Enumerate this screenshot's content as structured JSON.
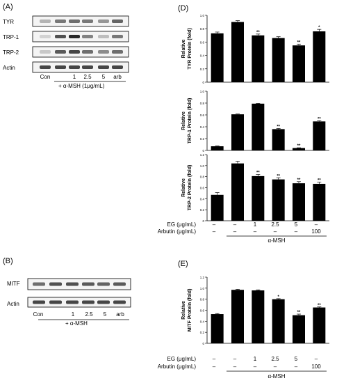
{
  "panels": {
    "A": "(A)",
    "B": "(B)",
    "D": "(D)",
    "E": "(E)"
  },
  "blot_A": {
    "rows": [
      "TYR",
      "TRP-1",
      "TRP-2",
      "Actin"
    ],
    "lanes": [
      "Con",
      "",
      "1",
      "2.5",
      "5",
      "arb"
    ],
    "treatment": "+ α-MSH (1μg/mL)"
  },
  "blot_B": {
    "rows": [
      "MITF",
      "Actin"
    ],
    "lanes": [
      "Con",
      "",
      "1",
      "2.5",
      "5",
      "arb"
    ],
    "treatment": "+ α-MSH"
  },
  "bottom_D": {
    "eg_label": "EG (μg/mL)",
    "arb_label": "Arbutin (μg/mL)",
    "eg": [
      "–",
      "–",
      "1",
      "2.5",
      "5",
      "–"
    ],
    "arb": [
      "–",
      "–",
      "–",
      "–",
      "–",
      "100"
    ],
    "msh": "α-MSH"
  },
  "bottom_E": {
    "eg_label": "EG (μg/mL)",
    "arb_label": "Arbutin (μg/mL)",
    "eg": [
      "–",
      "–",
      "1",
      "2.5",
      "5",
      "–"
    ],
    "arb": [
      "–",
      "–",
      "–",
      "–",
      "–",
      "100"
    ],
    "msh": "α-MSH"
  },
  "chart_data": [
    {
      "type": "bar",
      "ylabel": "Relative TYR Protein (fold)",
      "ylim": [
        0,
        1.0
      ],
      "yticks": [
        "0",
        "0.2",
        "0.4",
        "0.6",
        "0.8",
        "1.0"
      ],
      "values": [
        0.73,
        0.9,
        0.7,
        0.66,
        0.55,
        0.76
      ],
      "errors": [
        0.02,
        0.02,
        0.02,
        0.02,
        0.02,
        0.03
      ],
      "sig": [
        "",
        "",
        "**",
        "",
        "**",
        "*"
      ]
    },
    {
      "type": "bar",
      "ylabel": "Relative TRP-1 Protein (fold)",
      "ylim": [
        0,
        1.0
      ],
      "yticks": [
        "0",
        "0.2",
        "0.4",
        "0.6",
        "0.8",
        "1.0"
      ],
      "values": [
        0.07,
        0.61,
        0.79,
        0.36,
        0.04,
        0.49
      ],
      "errors": [
        0.005,
        0.005,
        0.005,
        0.01,
        0.005,
        0.01
      ],
      "sig": [
        "",
        "",
        "",
        "**",
        "**",
        "**"
      ]
    },
    {
      "type": "bar",
      "ylabel": "Relative TRP-2 Protein (fold)",
      "ylim": [
        0,
        1.2
      ],
      "yticks": [
        "0",
        "0.2",
        "0.4",
        "0.6",
        "0.8",
        "1.0",
        "1.2"
      ],
      "values": [
        0.47,
        1.04,
        0.81,
        0.75,
        0.68,
        0.67
      ],
      "errors": [
        0.04,
        0.04,
        0.03,
        0.03,
        0.03,
        0.03
      ],
      "sig": [
        "",
        "",
        "**",
        "**",
        "**",
        "**"
      ]
    },
    {
      "type": "bar",
      "ylabel": "Relative MITF Protein (fold)",
      "ylim": [
        0,
        1.2
      ],
      "yticks": [
        "0",
        "0.2",
        "0.4",
        "0.6",
        "0.8",
        "1.0",
        "1.2"
      ],
      "values": [
        0.53,
        0.97,
        0.96,
        0.8,
        0.51,
        0.65
      ],
      "errors": [
        0.01,
        0.01,
        0.01,
        0.01,
        0.02,
        0.01
      ],
      "sig": [
        "",
        "",
        "",
        "*",
        "**",
        "**"
      ]
    }
  ]
}
